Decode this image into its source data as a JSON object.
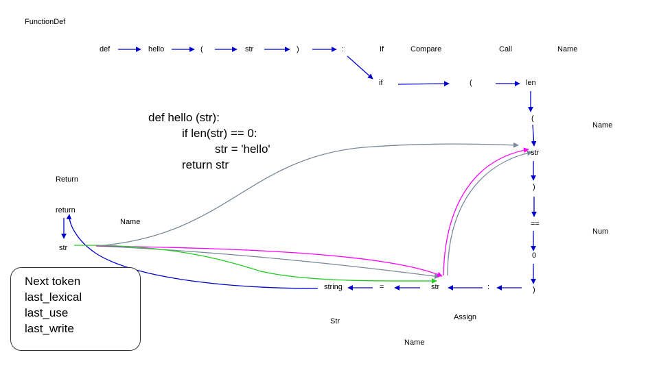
{
  "node_labels": {
    "functiondef": "FunctionDef",
    "if": "If",
    "compare": "Compare",
    "call": "Call",
    "name_top": "Name",
    "name_right_1": "Name",
    "num": "Num",
    "return": "Return",
    "name_left": "Name",
    "assign": "Assign",
    "str": "Str",
    "name_bottom": "Name"
  },
  "tokens": {
    "def": "def",
    "hello": "hello",
    "lparen1": "(",
    "str1": "str",
    "rparen1": ")",
    "colon1": ":",
    "if": "if",
    "lparen2": "(",
    "len": "len",
    "lparen3": "(",
    "str2": "str",
    "rparen2": ")",
    "eqeq": "==",
    "zero": "0",
    "rparen3": ")",
    "colon2": ":",
    "str3": "str",
    "assign": "=",
    "string": "string",
    "return": "return",
    "str4": "str"
  },
  "code": {
    "line1": "def hello (str):",
    "line2": "if len(str) == 0:",
    "line3": "str = 'hello'",
    "line4": "return str"
  },
  "legend": {
    "items": [
      {
        "label": "Next token",
        "color": "#0000cc"
      },
      {
        "label": "last_lexical",
        "color": "#ff00ff"
      },
      {
        "label": "last_use",
        "color": "#778899"
      },
      {
        "label": "last_write",
        "color": "#22cc22"
      }
    ]
  },
  "colors": {
    "next_token": "#0000cc",
    "last_lexical": "#ff00ff",
    "last_use": "#778899",
    "last_write": "#22cc22"
  }
}
